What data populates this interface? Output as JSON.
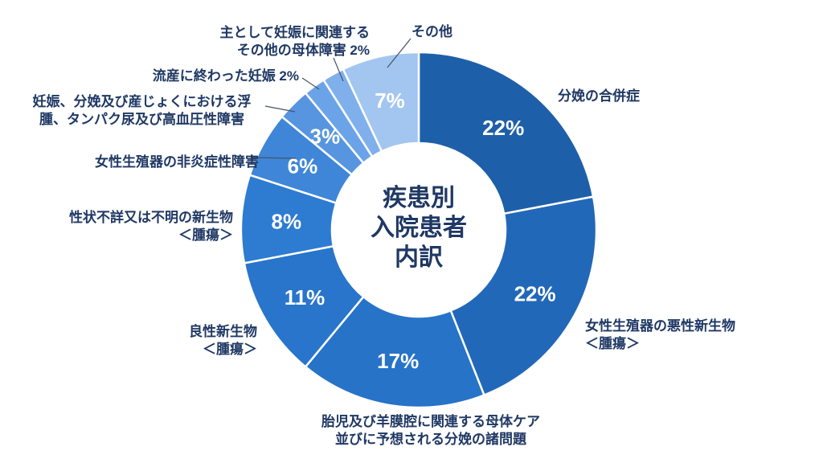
{
  "page": {
    "background": "#ffffff"
  },
  "chart_data": {
    "type": "pie",
    "variant": "donut",
    "title": "疾患別\n入院患者\n内訳",
    "legend_position": "none",
    "grid": false,
    "label_color": "#1f3864",
    "pct_label_color": "#ffffff",
    "leader_color": "#44546a",
    "segments": [
      {
        "label": "分娩の合併症",
        "value": 22,
        "pct": "22%",
        "color": "#1e5fa9",
        "callout": "分娩の合併症"
      },
      {
        "label": "女性生殖器の悪性新生物＜腫瘍＞",
        "value": 22,
        "pct": "22%",
        "color": "#2268b8",
        "callout": "女性生殖器の悪性新生物\n＜腫瘍＞"
      },
      {
        "label": "胎児及び羊膜腔に関連する母体ケア並びに予想される分娩の諸問題",
        "value": 17,
        "pct": "17%",
        "color": "#2673c8",
        "callout": "胎児及び羊膜腔に関連する母体ケア\n並びに予想される分娩の諸問題"
      },
      {
        "label": "良性新生物＜腫瘍＞",
        "value": 11,
        "pct": "11%",
        "color": "#2875cb",
        "callout": "良性新生物\n＜腫瘍＞"
      },
      {
        "label": "性状不詳又は不明の新生物＜腫瘍＞",
        "value": 8,
        "pct": "8%",
        "color": "#2e7bd2",
        "callout": "性状不詳又は不明の新生物\n＜腫瘍＞"
      },
      {
        "label": "女性生殖器の非炎症性障害",
        "value": 6,
        "pct": "6%",
        "color": "#3f86d8",
        "callout": "女性生殖器の非炎症性障害"
      },
      {
        "label": "妊娠、分娩及び産じょくにおける浮腫、タンパク尿及び高血圧性障害",
        "value": 3,
        "pct": "3%",
        "color": "#5795e0",
        "callout": "妊娠、分娩及び産じょくにおける浮\n腫、タンパク尿及び高血圧性障害"
      },
      {
        "label": "流産に終わった妊娠",
        "value": 2,
        "pct": "2%",
        "color": "#6ba3e8",
        "callout": "流産に終わった妊娠 2%"
      },
      {
        "label": "主として妊娠に関連するその他の母体障害",
        "value": 2,
        "pct": "2%",
        "color": "#7fb0ec",
        "callout": "主として妊娠に関連する\nその他の母体障害 2%"
      },
      {
        "label": "その他",
        "value": 7,
        "pct": "7%",
        "color": "#a3c6f0",
        "callout": "その他"
      }
    ]
  }
}
